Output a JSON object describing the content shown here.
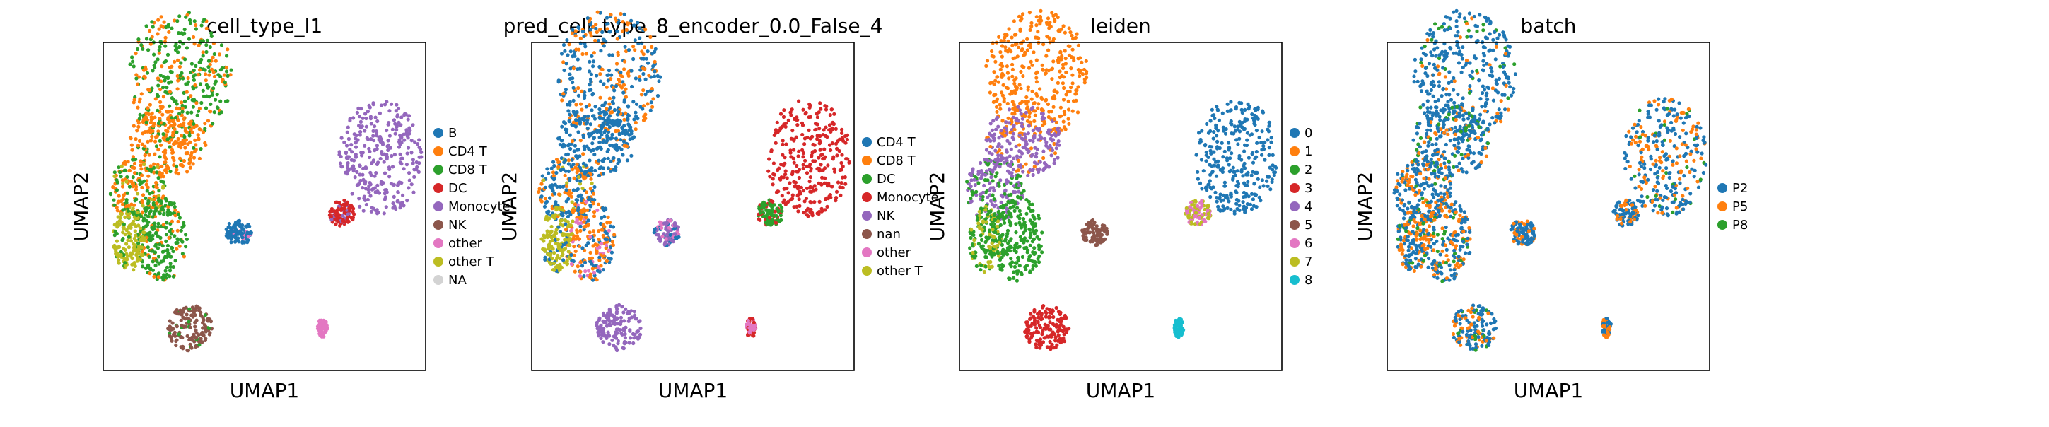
{
  "chart_data": [
    {
      "type": "scatter",
      "title": "cell_type_l1",
      "xlabel": "UMAP1",
      "ylabel": "UMAP2",
      "grid": false,
      "legend_placement": "right",
      "series": [
        {
          "name": "B",
          "color": "#1f77b4"
        },
        {
          "name": "CD4 T",
          "color": "#ff7f0e"
        },
        {
          "name": "CD8 T",
          "color": "#2ca02c"
        },
        {
          "name": "DC",
          "color": "#d62728"
        },
        {
          "name": "Monocyte",
          "color": "#9467bd"
        },
        {
          "name": "NK",
          "color": "#8c564b"
        },
        {
          "name": "other",
          "color": "#e377c2"
        },
        {
          "name": "other T",
          "color": "#bcbd22"
        },
        {
          "name": "NA",
          "color": "#d3d3d3"
        }
      ]
    },
    {
      "type": "scatter",
      "title": "pred_cell_type_8_encoder_0.0_False_4",
      "xlabel": "UMAP1",
      "ylabel": "UMAP2",
      "grid": false,
      "legend_placement": "right",
      "series": [
        {
          "name": "CD4 T",
          "color": "#1f77b4"
        },
        {
          "name": "CD8 T",
          "color": "#ff7f0e"
        },
        {
          "name": "DC",
          "color": "#2ca02c"
        },
        {
          "name": "Monocyte",
          "color": "#d62728"
        },
        {
          "name": "NK",
          "color": "#9467bd"
        },
        {
          "name": "nan",
          "color": "#8c564b"
        },
        {
          "name": "other",
          "color": "#e377c2"
        },
        {
          "name": "other T",
          "color": "#bcbd22"
        }
      ]
    },
    {
      "type": "scatter",
      "title": "leiden",
      "xlabel": "UMAP1",
      "ylabel": "UMAP2",
      "grid": false,
      "legend_placement": "right",
      "series": [
        {
          "name": "0",
          "color": "#1f77b4"
        },
        {
          "name": "1",
          "color": "#ff7f0e"
        },
        {
          "name": "2",
          "color": "#2ca02c"
        },
        {
          "name": "3",
          "color": "#d62728"
        },
        {
          "name": "4",
          "color": "#9467bd"
        },
        {
          "name": "5",
          "color": "#8c564b"
        },
        {
          "name": "6",
          "color": "#e377c2"
        },
        {
          "name": "7",
          "color": "#bcbd22"
        },
        {
          "name": "8",
          "color": "#17becf"
        }
      ]
    },
    {
      "type": "scatter",
      "title": "batch",
      "xlabel": "UMAP1",
      "ylabel": "UMAP2",
      "grid": false,
      "legend_placement": "right",
      "series": [
        {
          "name": "P2",
          "color": "#1f77b4"
        },
        {
          "name": "P5",
          "color": "#ff7f0e"
        },
        {
          "name": "P8",
          "color": "#2ca02c"
        }
      ]
    }
  ]
}
